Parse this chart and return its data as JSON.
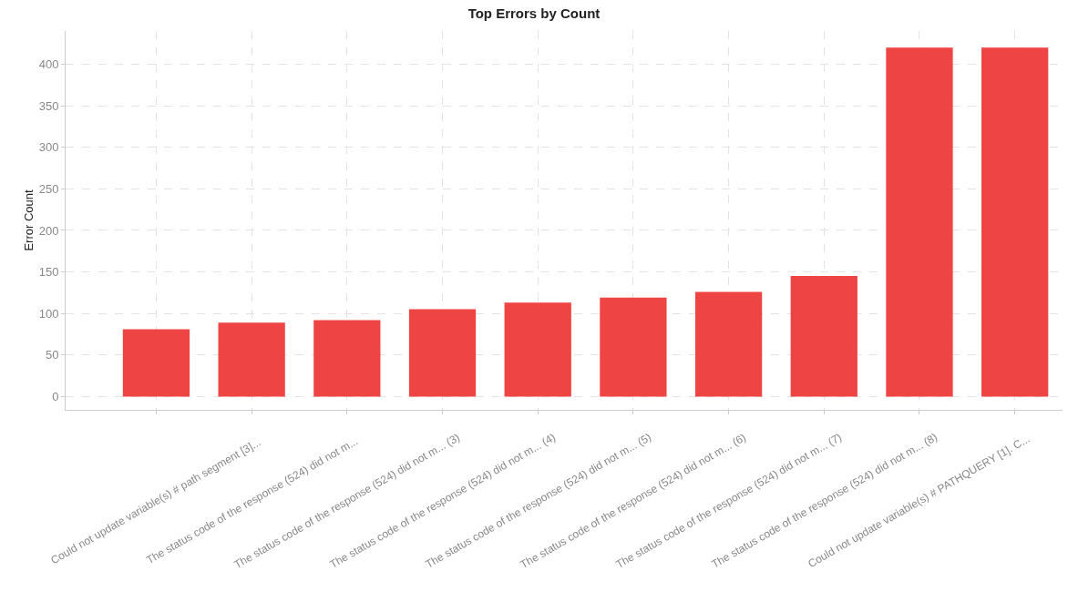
{
  "chart_data": {
    "type": "bar",
    "title": "Top Errors by Count",
    "ylabel": "Error Count",
    "categories": [
      "Could not update variable(s) # path segment [3]...",
      "The status code of the response (524) did not m...",
      "The status code of the response (524) did not m... (3)",
      "The status code of the response (524) did not m... (4)",
      "The status code of the response (524) did not m... (5)",
      "The status code of the response (524) did not m... (6)",
      "The status code of the response (524) did not m... (7)",
      "The status code of the response (524) did not m... (8)",
      "Could not update variable(s) # PATHQUERY [1]. C...",
      null
    ],
    "values": [
      81,
      89,
      92,
      105,
      113,
      119,
      126,
      145,
      420,
      420
    ],
    "color": "#ef4444",
    "ylim": [
      -16,
      440
    ],
    "yticks": [
      0,
      50,
      100,
      150,
      200,
      250,
      300,
      350,
      400
    ],
    "grid": true
  }
}
